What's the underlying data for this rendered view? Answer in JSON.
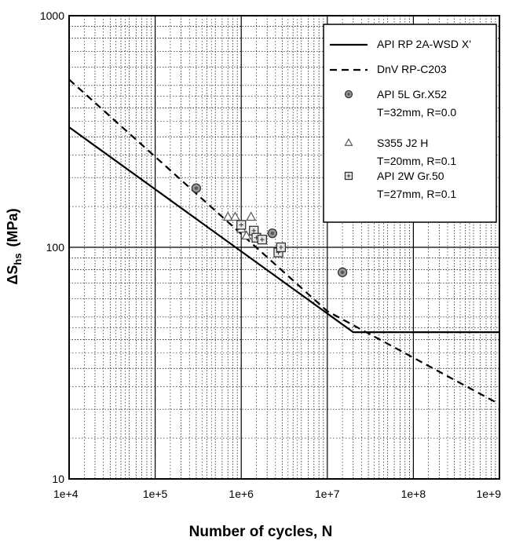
{
  "chart_data": {
    "type": "scatter",
    "title": "",
    "xlabel": "Number of cycles, N",
    "ylabel_main": "ΔS",
    "ylabel_sub": "hs",
    "ylabel_unit": "(MPa)",
    "xscale": "log",
    "yscale": "log",
    "xlim": [
      10000,
      1000000000
    ],
    "ylim": [
      10,
      1000
    ],
    "x_tick_labels": [
      "1e+4",
      "1e+5",
      "1e+6",
      "1e+7",
      "1e+8",
      "1e+9"
    ],
    "y_tick_labels": [
      "10",
      "100",
      "1000"
    ],
    "grid": true,
    "legend_position": "top-right",
    "legend": [
      {
        "line1": "API RP 2A-WSD X'",
        "line2": ""
      },
      {
        "line1": "DnV RP-C203",
        "line2": ""
      },
      {
        "line1": "API 5L Gr.X52",
        "line2": "T=32mm, R=0.0"
      },
      {
        "line1": "S355 J2 H",
        "line2": "T=20mm, R=0.1"
      },
      {
        "line1": "API 2W Gr.50",
        "line2": "T=27mm, R=0.1"
      }
    ],
    "lines": [
      {
        "name": "API RP 2A-WSD X'",
        "style": "solid",
        "points": [
          [
            10000,
            330
          ],
          [
            20000000,
            43
          ],
          [
            1000000000,
            43
          ]
        ]
      },
      {
        "name": "DnV RP-C203",
        "style": "dashed",
        "points": [
          [
            10000,
            530
          ],
          [
            10000000,
            53
          ],
          [
            1000000000,
            21
          ]
        ]
      }
    ],
    "series": [
      {
        "name": "API 5L Gr.X52",
        "marker": "circle",
        "points": [
          [
            300000,
            180
          ],
          [
            2300000,
            115
          ],
          [
            15000000,
            78
          ]
        ]
      },
      {
        "name": "S355 J2 H",
        "marker": "triangle",
        "points": [
          [
            700000,
            135
          ],
          [
            850000,
            135
          ],
          [
            1300000,
            135
          ],
          [
            1000000,
            120
          ],
          [
            1150000,
            112
          ]
        ]
      },
      {
        "name": "API 2W Gr.50",
        "marker": "square",
        "points": [
          [
            1000000,
            125
          ],
          [
            1400000,
            118
          ],
          [
            1500000,
            110
          ],
          [
            1750000,
            108
          ],
          [
            2700000,
            95
          ],
          [
            2900000,
            100
          ]
        ]
      }
    ]
  }
}
